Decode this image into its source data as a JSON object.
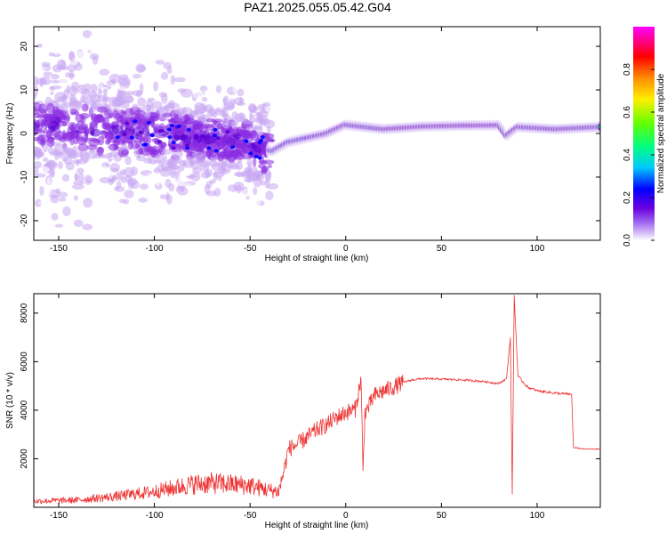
{
  "title": "PAZ1.2025.055.05.42.G04",
  "chart_data": [
    {
      "type": "heatmap",
      "xlabel": "Height of straight line (km)",
      "ylabel": "Frequency (Hz)",
      "xlim": [
        -163,
        133
      ],
      "ylim": [
        -24.5,
        24.5
      ],
      "xticks": [
        -150,
        -100,
        -50,
        0,
        50,
        100
      ],
      "yticks": [
        -20,
        -10,
        0,
        10,
        20
      ],
      "colorbar": {
        "label": "Normalized spectral amplitude",
        "range": [
          0,
          1
        ],
        "ticks": [
          "0.0",
          "0.2",
          "0.4",
          "0.6",
          "0.8"
        ],
        "colors": [
          "#ffffff",
          "#c9a8f2",
          "#8a2be2",
          "#5a00d6",
          "#0000ff",
          "#00d7ff",
          "#00ff66",
          "#b8ff00",
          "#ffd000",
          "#ff6a00",
          "#ff0000",
          "#ff00ff"
        ]
      },
      "ridge": [
        {
          "x": -160,
          "f": 2.0
        },
        {
          "x": -140,
          "f": 1.0
        },
        {
          "x": -120,
          "f": 0.5
        },
        {
          "x": -100,
          "f": 0.0
        },
        {
          "x": -80,
          "f": -1.0
        },
        {
          "x": -60,
          "f": -1.5
        },
        {
          "x": -45,
          "f": -3.5
        },
        {
          "x": -38,
          "f": -4.0
        },
        {
          "x": -30,
          "f": -2.0
        },
        {
          "x": -20,
          "f": -1.0
        },
        {
          "x": -10,
          "f": 0.0
        },
        {
          "x": 0,
          "f": 2.0
        },
        {
          "x": 10,
          "f": 1.5
        },
        {
          "x": 20,
          "f": 1.0
        },
        {
          "x": 40,
          "f": 1.6
        },
        {
          "x": 60,
          "f": 1.8
        },
        {
          "x": 80,
          "f": 1.9
        },
        {
          "x": 84,
          "f": -0.5
        },
        {
          "x": 90,
          "f": 1.5
        },
        {
          "x": 110,
          "f": 1.0
        },
        {
          "x": 133,
          "f": 1.5
        }
      ]
    },
    {
      "type": "line",
      "xlabel": "Height of straight line (km)",
      "ylabel": "SNR (10 * v/v)",
      "xlim": [
        -163,
        133
      ],
      "ylim": [
        0,
        8800
      ],
      "xticks": [
        -150,
        -100,
        -50,
        0,
        50,
        100
      ],
      "yticks": [
        2000,
        4000,
        6000,
        8000
      ],
      "color": "#ee3333",
      "series": [
        {
          "x": [
            -163,
            -150,
            -140,
            -130,
            -120,
            -110,
            -100,
            -90,
            -80,
            -70,
            -60,
            -50,
            -40,
            -35,
            -32,
            -30,
            -25,
            -20,
            -15,
            -10,
            -5,
            0,
            5,
            8,
            9,
            10,
            12,
            15,
            20,
            25,
            30,
            35,
            40,
            50,
            60,
            70,
            75,
            80,
            84,
            86,
            87,
            88,
            90,
            95,
            100,
            110,
            118,
            119,
            120,
            125,
            133
          ],
          "y": [
            250,
            280,
            300,
            380,
            450,
            550,
            650,
            800,
            950,
            1000,
            950,
            900,
            700,
            650,
            1600,
            2400,
            2600,
            2900,
            3200,
            3400,
            3700,
            3900,
            4050,
            5300,
            1400,
            3900,
            4150,
            4600,
            4800,
            4950,
            5150,
            5250,
            5300,
            5280,
            5250,
            5200,
            5150,
            5100,
            5300,
            7000,
            500,
            8700,
            5400,
            4950,
            4800,
            4700,
            4650,
            2450,
            2450,
            2400,
            2400
          ]
        }
      ]
    }
  ]
}
